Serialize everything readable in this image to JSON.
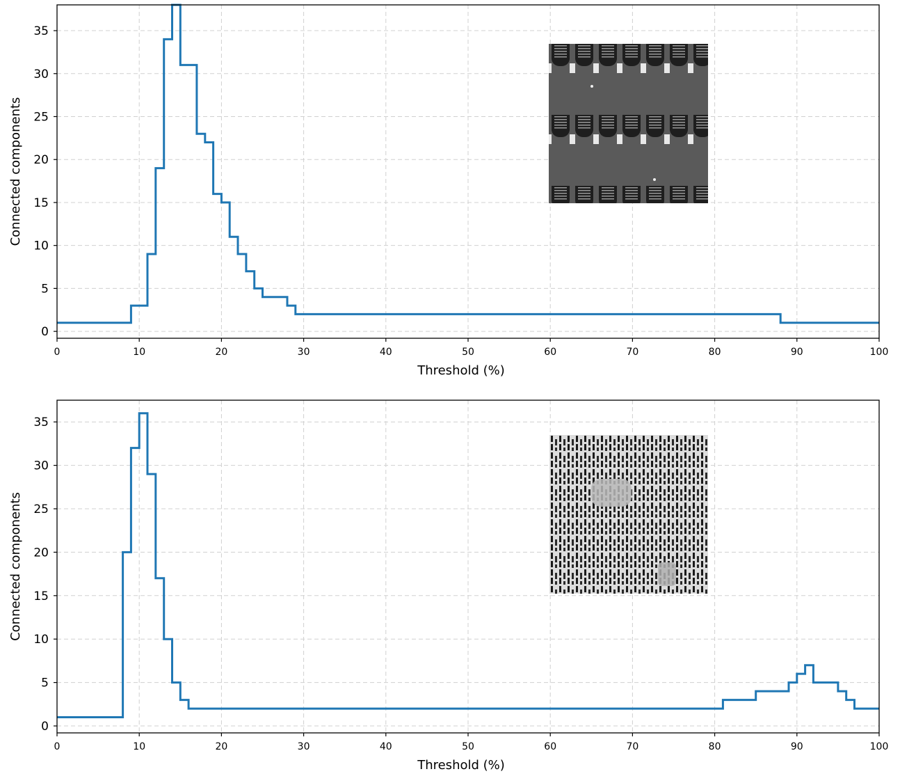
{
  "chart_data": [
    {
      "type": "line",
      "step": true,
      "xlabel": "Threshold (%)",
      "ylabel": "Connected components",
      "xlim": [
        0,
        100
      ],
      "ylim": [
        -0.8,
        38
      ],
      "xticks": [
        0,
        10,
        20,
        30,
        40,
        50,
        60,
        70,
        80,
        90,
        100
      ],
      "yticks": [
        0,
        5,
        10,
        15,
        20,
        25,
        30,
        35
      ],
      "grid": true,
      "series_color": "#1f77b4",
      "inset_image": "SEM micrograph: rows of rounded rectangular pillars",
      "x": [
        0,
        9,
        11,
        12,
        13,
        14,
        15,
        17,
        18,
        19,
        20,
        21,
        22,
        23,
        24,
        25,
        28,
        29,
        88,
        100
      ],
      "values": [
        1,
        3,
        9,
        19,
        34,
        38,
        31,
        23,
        22,
        16,
        15,
        11,
        9,
        7,
        5,
        4,
        3,
        2,
        1,
        1
      ]
    },
    {
      "type": "line",
      "step": true,
      "xlabel": "Threshold (%)",
      "ylabel": "Connected components",
      "xlim": [
        0,
        100
      ],
      "ylim": [
        -0.8,
        37.5
      ],
      "xticks": [
        0,
        10,
        20,
        30,
        40,
        50,
        60,
        70,
        80,
        90,
        100
      ],
      "yticks": [
        0,
        5,
        10,
        15,
        20,
        25,
        30,
        35
      ],
      "grid": true,
      "series_color": "#1f77b4",
      "inset_image": "SEM micrograph: dense array of vertical slits with defects",
      "x": [
        0,
        8,
        9,
        10,
        11,
        12,
        13,
        14,
        15,
        16,
        81,
        85,
        89,
        90,
        91,
        92,
        95,
        96,
        97,
        100
      ],
      "values": [
        1,
        20,
        32,
        36,
        29,
        17,
        10,
        5,
        3,
        2,
        3,
        4,
        5,
        6,
        7,
        5,
        4,
        3,
        2,
        2
      ]
    }
  ]
}
